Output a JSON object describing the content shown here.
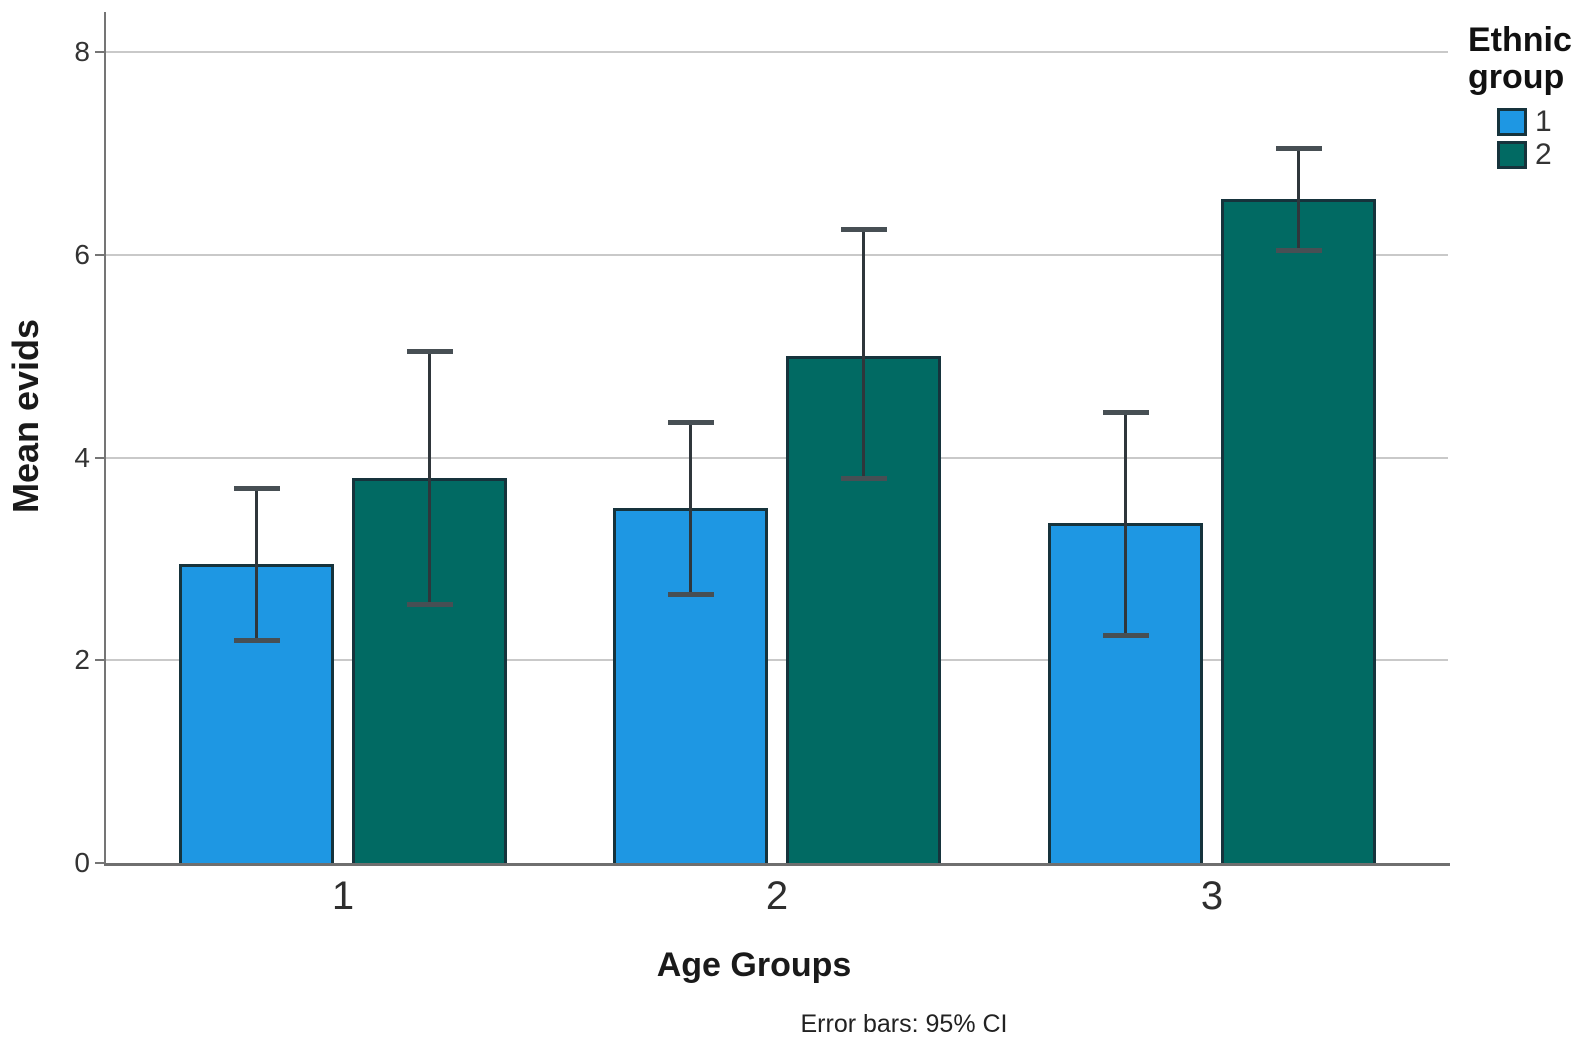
{
  "chart_data": {
    "type": "bar",
    "title": "",
    "categories": [
      "1",
      "2",
      "3"
    ],
    "series": [
      {
        "name": "1",
        "color": "#1e97e3",
        "values": [
          2.95,
          3.5,
          3.35
        ],
        "ci_low": [
          2.2,
          2.65,
          2.25
        ],
        "ci_high": [
          3.7,
          4.35,
          4.45
        ]
      },
      {
        "name": "2",
        "color": "#016a63",
        "values": [
          3.8,
          5.0,
          6.55
        ],
        "ci_low": [
          2.55,
          3.8,
          6.05
        ],
        "ci_high": [
          5.05,
          6.25,
          7.05
        ]
      }
    ],
    "xlabel": "Age Groups",
    "ylabel": "Mean evids",
    "ylim": [
      0,
      8
    ],
    "yticks": [
      0,
      2,
      4,
      6,
      8
    ],
    "grid": true,
    "legend_title": "Ethnic group",
    "legend_position": "top-right",
    "footnote": "Error bars: 95% CI"
  },
  "colors": {
    "bar_border": "#16333c",
    "gridline": "#c9c9c9",
    "axis": "#6f6f6f",
    "error_bar": "#2f363b",
    "text": "#1a1a1a"
  }
}
